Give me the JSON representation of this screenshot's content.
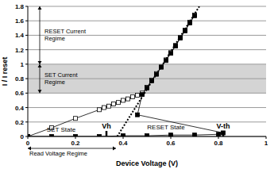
{
  "chart_data": {
    "type": "line",
    "x_label": "Device Voltage (V)",
    "y_label": "I / I reset",
    "xlim": [
      0,
      1
    ],
    "xticks": [
      0,
      0.2,
      0.4,
      0.6,
      0.8,
      1
    ],
    "ylim": [
      0,
      1.8
    ],
    "yticks": [
      0,
      0.2,
      0.4,
      0.6,
      0.8,
      1,
      1.2,
      1.4,
      1.6,
      1.8
    ],
    "grid": "y",
    "series": [
      {
        "color": "#000000",
        "marker": "open-square",
        "line_style": "solid",
        "x": [
          0,
          0.1,
          0.2,
          0.3,
          0.32,
          0.34,
          0.36,
          0.38,
          0.4,
          0.42,
          0.44,
          0.46,
          0.48,
          0.5,
          0.52,
          0.54,
          0.56,
          0.58,
          0.6,
          0.62,
          0.64,
          0.66,
          0.68,
          0.7
        ],
        "values": [
          0,
          0.12,
          0.25,
          0.37,
          0.4,
          0.42,
          0.45,
          0.47,
          0.5,
          0.52,
          0.55,
          0.57,
          0.6,
          0.68,
          0.78,
          0.87,
          0.96,
          1.06,
          1.16,
          1.26,
          1.37,
          1.47,
          1.58,
          1.68
        ]
      },
      {
        "color": "#000000",
        "marker": "square",
        "line_style": "solid",
        "x": [
          0,
          0.1,
          0.2,
          0.3,
          0.4,
          0.5,
          0.6,
          0.7,
          0.8,
          0.82,
          0.46,
          0.48,
          0.5,
          0.52,
          0.54,
          0.56,
          0.58,
          0.6,
          0.62,
          0.64,
          0.66,
          0.68,
          0.7
        ],
        "values": [
          0,
          0,
          0,
          0,
          0.01,
          0.01,
          0.02,
          0.02,
          0.03,
          0.05,
          0.3,
          0.58,
          0.67,
          0.77,
          0.86,
          0.96,
          1.05,
          1.15,
          1.25,
          1.36,
          1.46,
          1.57,
          1.67
        ]
      },
      {
        "color": "#000000",
        "marker": "none",
        "line_style": "dotted",
        "x": [
          0.375,
          0.72
        ],
        "values": [
          0,
          1.8
        ]
      }
    ],
    "regimes": [
      {
        "label": "RESET Current Regime",
        "ylim": [
          1,
          1.8
        ]
      },
      {
        "label": "SET Current Regime",
        "ylim": [
          0.6,
          1
        ],
        "color": "#d4d4d4"
      }
    ],
    "read_regime": {
      "label": "Read Voltage Regime",
      "xlim": [
        0,
        0.37
      ]
    },
    "thresholds": [
      {
        "label": "Vh",
        "x": 0.33
      },
      {
        "label": "V-th",
        "x": 0.82
      }
    ],
    "state_labels": [
      {
        "label": "SET State",
        "x": 0.14,
        "y": 0.07
      },
      {
        "label": "RESET State",
        "x": 0.58,
        "y": 0.1
      }
    ]
  }
}
